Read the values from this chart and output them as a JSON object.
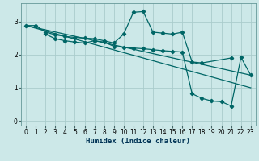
{
  "title": "",
  "xlabel": "Humidex (Indice chaleur)",
  "ylabel": "",
  "bg_color": "#cce8e8",
  "line_color": "#006666",
  "grid_color": "#aacccc",
  "xlim": [
    -0.5,
    23.5
  ],
  "ylim": [
    -0.15,
    3.55
  ],
  "xticks": [
    0,
    1,
    2,
    3,
    4,
    5,
    6,
    7,
    8,
    9,
    10,
    11,
    12,
    13,
    14,
    15,
    16,
    17,
    18,
    19,
    20,
    21,
    22,
    23
  ],
  "yticks": [
    0,
    1,
    2,
    3
  ],
  "series1_x": [
    0,
    1,
    2,
    3,
    4,
    5,
    6,
    7,
    8,
    9,
    10,
    11,
    12,
    13,
    14,
    15,
    16,
    17,
    18,
    21
  ],
  "series1_y": [
    2.88,
    2.88,
    2.68,
    2.6,
    2.55,
    2.52,
    2.5,
    2.48,
    2.42,
    2.35,
    2.62,
    3.28,
    3.3,
    2.68,
    2.65,
    2.62,
    2.68,
    1.78,
    1.75,
    1.9
  ],
  "series2_x": [
    2,
    3,
    4,
    5,
    6,
    7,
    8,
    9,
    10,
    11,
    12,
    13,
    14,
    15,
    16,
    17,
    18,
    19,
    20,
    21,
    22,
    23
  ],
  "series2_y": [
    2.62,
    2.48,
    2.42,
    2.38,
    2.35,
    2.42,
    2.38,
    2.25,
    2.22,
    2.2,
    2.18,
    2.15,
    2.12,
    2.1,
    2.08,
    0.82,
    0.68,
    0.6,
    0.58,
    0.45,
    1.92,
    1.38
  ],
  "line1_x": [
    0,
    23
  ],
  "line1_y": [
    2.88,
    1.38
  ],
  "line2_x": [
    0,
    23
  ],
  "line2_y": [
    2.88,
    1.0
  ],
  "tick_fontsize": 5.5,
  "xlabel_fontsize": 6.5
}
